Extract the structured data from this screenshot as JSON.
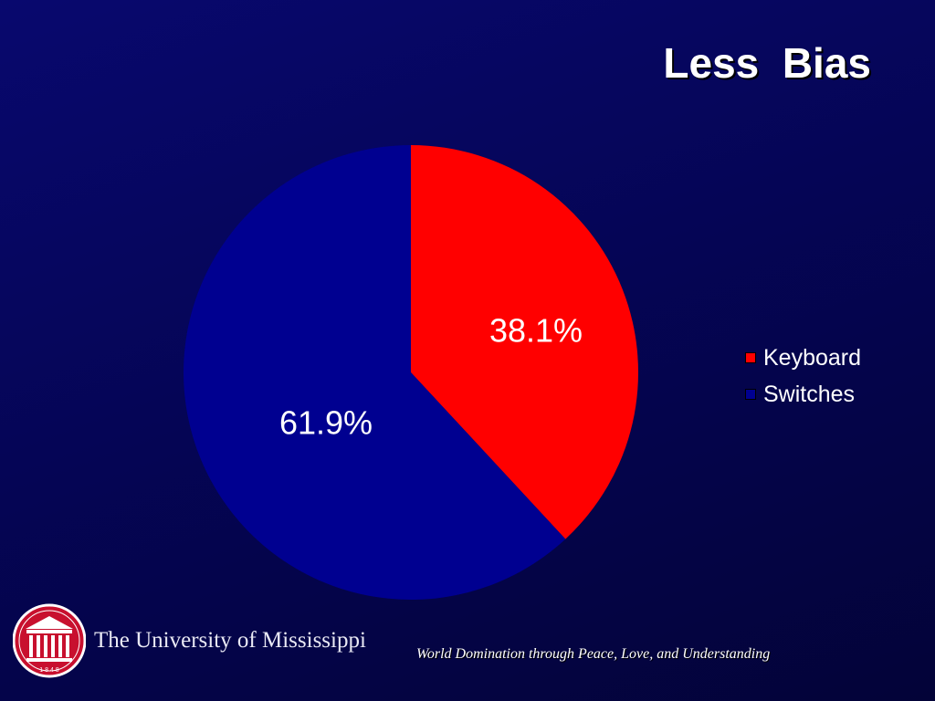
{
  "slide": {
    "title": "Less  Bias",
    "footer": {
      "organization": "The University of Mississippi",
      "seal_year": "1 8 4 8",
      "motto": "World Domination through Peace, Love, and Understanding"
    }
  },
  "colors": {
    "background": "#06065e",
    "keyboard": "#ff0000",
    "switches": "#000090",
    "seal": "#c8102e"
  },
  "chart_data": {
    "type": "pie",
    "categories": [
      "Keyboard",
      "Switches"
    ],
    "values": [
      38.1,
      61.9
    ],
    "labels": [
      "38.1%",
      "61.9%"
    ],
    "colors": [
      "#ff0000",
      "#000090"
    ],
    "legend_position": "right",
    "start": "12 o'clock",
    "direction": "clockwise"
  }
}
